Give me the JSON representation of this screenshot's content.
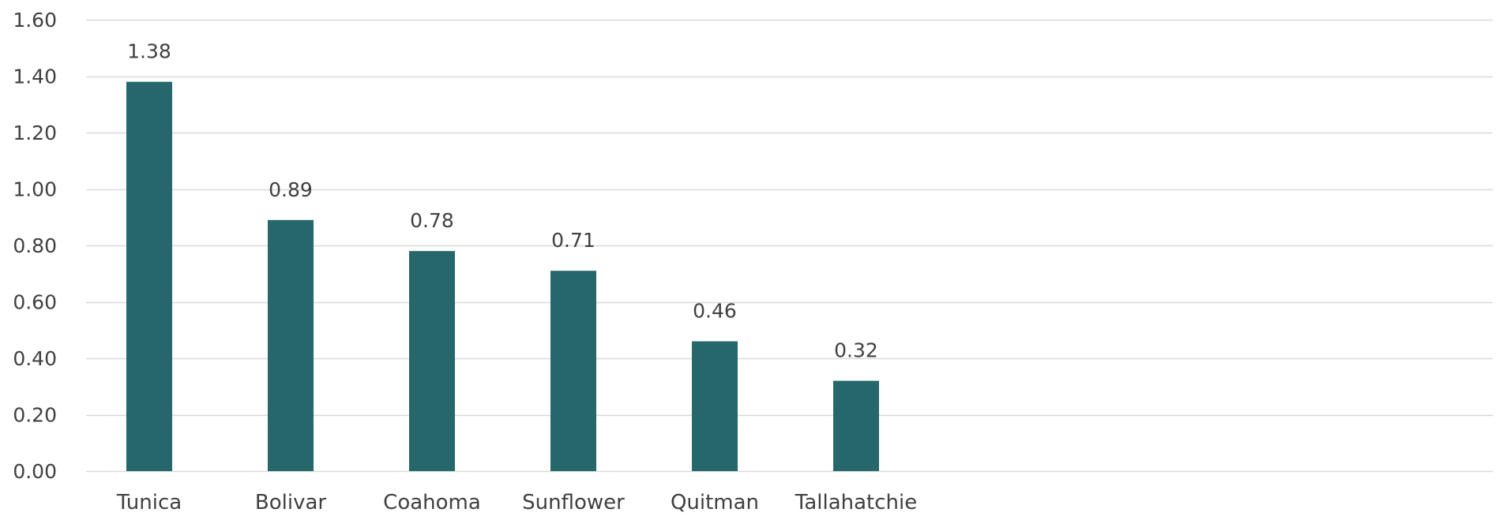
{
  "chart_data": {
    "type": "bar",
    "title": "",
    "xlabel": "",
    "ylabel": "",
    "categories": [
      "Tunica",
      "Bolivar",
      "Coahoma",
      "Sunflower",
      "Quitman",
      "Tallahatchie"
    ],
    "values": [
      1.38,
      0.89,
      0.78,
      0.71,
      0.46,
      0.32
    ],
    "value_labels": [
      "1.38",
      "0.89",
      "0.78",
      "0.71",
      "0.46",
      "0.32"
    ],
    "ylim": [
      0,
      1.6
    ],
    "y_ticks": [
      0,
      0.2,
      0.4,
      0.6,
      0.8,
      1.0,
      1.2,
      1.4,
      1.6
    ],
    "y_tick_labels": [
      "0.00",
      "0.20",
      "0.40",
      "0.60",
      "0.80",
      "1.00",
      "1.20",
      "1.40",
      "1.60"
    ],
    "grid": true,
    "legend": "none",
    "colors": {
      "bar": "#25676b",
      "grid": "#d9d9d9",
      "text": "#404040"
    }
  }
}
